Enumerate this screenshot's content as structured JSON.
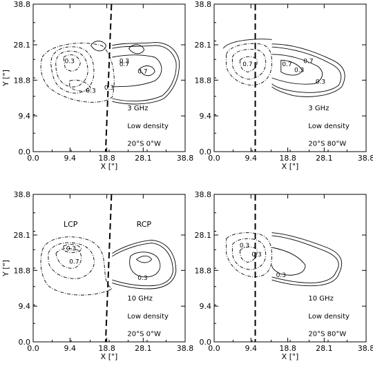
{
  "figure": {
    "panels": [
      {
        "id": "top-left",
        "freq": "3 GHz",
        "density": "Low density",
        "position": "20°S   0°W",
        "labels": [
          "0.3",
          "0.3",
          "0.3",
          "0.3",
          "0.7",
          "0.7"
        ],
        "lcp": "",
        "rcp": ""
      },
      {
        "id": "top-right",
        "freq": "3 GHz",
        "density": "Low density",
        "position": "20°S  80°W",
        "labels": [
          "0.3",
          "0.3",
          "0.7",
          "0.7",
          "0.7"
        ],
        "lcp": "",
        "rcp": ""
      },
      {
        "id": "bottom-left",
        "freq": "10 GHz",
        "density": "Low density",
        "position": "20°S   0°W",
        "labels": [
          "0.3",
          "0.7",
          "0.3"
        ],
        "lcp": "LCP",
        "rcp": "RCP"
      },
      {
        "id": "bottom-right",
        "freq": "10 GHz",
        "density": "Low density",
        "position": "20°S  80°W",
        "labels": [
          "0.3",
          "0.3",
          "0.3"
        ],
        "lcp": "",
        "rcp": ""
      }
    ]
  },
  "chart_data": {
    "type": "contour",
    "xlabel": "X [\"]",
    "ylabel": "Y [\"]",
    "xlim": [
      0,
      38.8
    ],
    "ylim": [
      0,
      38.8
    ],
    "xticks": [
      "0.0",
      "9.4",
      "18.8",
      "28.1",
      "38.8"
    ],
    "yticks": [
      "0.0",
      "9.4",
      "18.8",
      "28.1",
      "38.8"
    ],
    "contour_levels": [
      0.3,
      0.7
    ],
    "styles": {
      "lcp": "dash-dot",
      "rcp": "solid",
      "divider": "dashed"
    },
    "dividers": [
      {
        "panel": "top-left",
        "x_top": 20.0,
        "x_bottom": 18.5
      },
      {
        "panel": "top-right",
        "x_top": 10.5,
        "x_bottom": 10.5
      },
      {
        "panel": "bottom-left",
        "x_top": 20.0,
        "x_bottom": 18.5
      },
      {
        "panel": "bottom-right",
        "x_top": 10.5,
        "x_bottom": 10.5
      }
    ]
  }
}
